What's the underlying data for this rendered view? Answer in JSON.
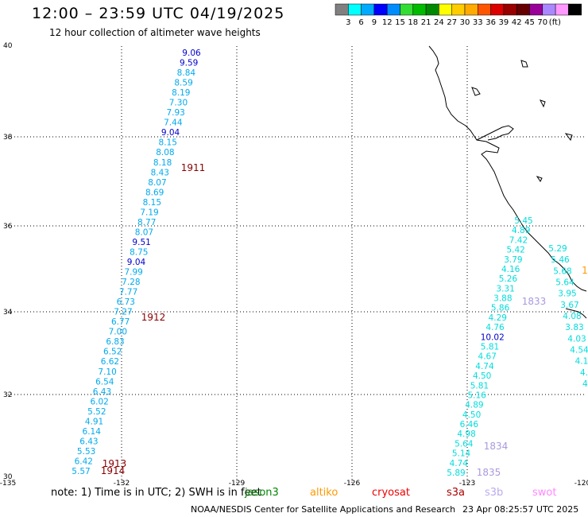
{
  "title": "12:00 – 23:59 UTC 04/19/2025",
  "subtitle": "12 hour collection of altimeter wave heights",
  "legend": {
    "colors": [
      "#808080",
      "#00ffff",
      "#00aaff",
      "#0000ff",
      "#008cff",
      "#33dd33",
      "#00bb00",
      "#008800",
      "#ffff00",
      "#ffcc00",
      "#ffaa00",
      "#ff5500",
      "#dd0000",
      "#990000",
      "#660000",
      "#990099",
      "#aa88ff",
      "#ff99ff",
      "#000000"
    ],
    "labels": [
      "3",
      "6",
      "9",
      "12",
      "15",
      "18",
      "21",
      "24",
      "27",
      "30",
      "33",
      "36",
      "39",
      "42",
      "45",
      "70"
    ],
    "unit": "(ft)"
  },
  "axes": {
    "x_labels": [
      "-135",
      "-132",
      "-129",
      "-126",
      "-123",
      "-120"
    ],
    "y_labels": [
      "40",
      "38",
      "36",
      "34",
      "32",
      "30"
    ]
  },
  "track_west": [
    {
      "v": "9.06",
      "c": "#0000cc"
    },
    {
      "v": "9.59",
      "c": "#0000cc"
    },
    {
      "v": "8.84",
      "c": "#00aaee"
    },
    {
      "v": "8.59",
      "c": "#00aaee"
    },
    {
      "v": "8.19",
      "c": "#00aaee"
    },
    {
      "v": "7.30",
      "c": "#00aaee"
    },
    {
      "v": "7.93",
      "c": "#00aaee"
    },
    {
      "v": "7.44",
      "c": "#00aaee"
    },
    {
      "v": "9.04",
      "c": "#0000cc"
    },
    {
      "v": "8.15",
      "c": "#00aaee"
    },
    {
      "v": "8.08",
      "c": "#00aaee"
    },
    {
      "v": "8.18",
      "c": "#00aaee"
    },
    {
      "v": "8.43",
      "c": "#00aaee"
    },
    {
      "v": "8.07",
      "c": "#00aaee"
    },
    {
      "v": "8.69",
      "c": "#00aaee"
    },
    {
      "v": "8.15",
      "c": "#00aaee"
    },
    {
      "v": "7.19",
      "c": "#00aaee"
    },
    {
      "v": "8.77",
      "c": "#00aaee"
    },
    {
      "v": "8.07",
      "c": "#00aaee"
    },
    {
      "v": "9.51",
      "c": "#0000cc"
    },
    {
      "v": "8.75",
      "c": "#00aaee"
    },
    {
      "v": "9.04",
      "c": "#0000cc"
    },
    {
      "v": "7.99",
      "c": "#00aaee"
    },
    {
      "v": "7.28",
      "c": "#00aaee"
    },
    {
      "v": "7.77",
      "c": "#00aaee"
    },
    {
      "v": "6.73",
      "c": "#00aaee"
    },
    {
      "v": "7.27",
      "c": "#00aaee"
    },
    {
      "v": "6.77",
      "c": "#00aaee"
    },
    {
      "v": "7.00",
      "c": "#00aaee"
    },
    {
      "v": "6.83",
      "c": "#00aaee"
    },
    {
      "v": "6.52",
      "c": "#00aaee"
    },
    {
      "v": "6.62",
      "c": "#00aaee"
    },
    {
      "v": "7.10",
      "c": "#00aaee"
    },
    {
      "v": "6.54",
      "c": "#00aaee"
    },
    {
      "v": "6.43",
      "c": "#00aaee"
    },
    {
      "v": "6.02",
      "c": "#00aaee"
    },
    {
      "v": "5.52",
      "c": "#00aaee"
    },
    {
      "v": "4.91",
      "c": "#00aaee"
    },
    {
      "v": "6.14",
      "c": "#00aaee"
    },
    {
      "v": "6.43",
      "c": "#00aaee"
    },
    {
      "v": "5.53",
      "c": "#00aaee"
    },
    {
      "v": "6.42",
      "c": "#00aaee"
    },
    {
      "v": "5.57",
      "c": "#00aaee"
    }
  ],
  "track_east": [
    {
      "v": "5.45",
      "c": "#00dddd"
    },
    {
      "v": "4.89",
      "c": "#00dddd"
    },
    {
      "v": "7.42",
      "c": "#00dddd"
    },
    {
      "v": "5.42",
      "c": "#00dddd"
    },
    {
      "v": "3.79",
      "c": "#00dddd"
    },
    {
      "v": "4.16",
      "c": "#00dddd"
    },
    {
      "v": "5.26",
      "c": "#00dddd"
    },
    {
      "v": "3.31",
      "c": "#00dddd"
    },
    {
      "v": "3.88",
      "c": "#00dddd"
    },
    {
      "v": "5.86",
      "c": "#00dddd"
    },
    {
      "v": "4.29",
      "c": "#00dddd"
    },
    {
      "v": "4.76",
      "c": "#00dddd"
    },
    {
      "v": "10.02",
      "c": "#0000cc"
    },
    {
      "v": "5.81",
      "c": "#00dddd"
    },
    {
      "v": "4.67",
      "c": "#00dddd"
    },
    {
      "v": "4.74",
      "c": "#00dddd"
    },
    {
      "v": "4.50",
      "c": "#00dddd"
    },
    {
      "v": "5.81",
      "c": "#00dddd"
    },
    {
      "v": "5.16",
      "c": "#00dddd"
    },
    {
      "v": "4.89",
      "c": "#00dddd"
    },
    {
      "v": "4.50",
      "c": "#00dddd"
    },
    {
      "v": "6.46",
      "c": "#00dddd"
    },
    {
      "v": "4.98",
      "c": "#00dddd"
    },
    {
      "v": "5.64",
      "c": "#00dddd"
    },
    {
      "v": "5.14",
      "c": "#00dddd"
    },
    {
      "v": "4.74",
      "c": "#00dddd"
    },
    {
      "v": "5.89",
      "c": "#00dddd"
    }
  ],
  "track_far_east": [
    {
      "v": "5.29",
      "c": "#00dddd"
    },
    {
      "v": "5.46",
      "c": "#00dddd"
    },
    {
      "v": "5.68",
      "c": "#00dddd"
    },
    {
      "v": "5.64",
      "c": "#00dddd"
    },
    {
      "v": "3.95",
      "c": "#00dddd"
    },
    {
      "v": "3.67",
      "c": "#00dddd"
    },
    {
      "v": "4.08",
      "c": "#00dddd"
    },
    {
      "v": "3.83",
      "c": "#00dddd"
    },
    {
      "v": "4.03",
      "c": "#00dddd"
    },
    {
      "v": "4.54",
      "c": "#00dddd"
    },
    {
      "v": "4.1",
      "c": "#00dddd"
    },
    {
      "v": "4.",
      "c": "#00dddd"
    },
    {
      "v": "4.",
      "c": "#00dddd"
    }
  ],
  "time_labels": [
    {
      "t": "1911",
      "c": "#880000"
    },
    {
      "t": "1912",
      "c": "#880000"
    },
    {
      "t": "1913",
      "c": "#880000"
    },
    {
      "t": "1914",
      "c": "#880000"
    },
    {
      "t": "1833",
      "c": "#aa99dd"
    },
    {
      "t": "1834",
      "c": "#aa99dd"
    },
    {
      "t": "1835",
      "c": "#aa99dd"
    },
    {
      "t": "1",
      "c": "#ff9900"
    }
  ],
  "note": {
    "text": "note:  1) Time is in UTC;  2) SWH is in feet",
    "sats": [
      {
        "name": "jason3",
        "color": "#008800"
      },
      {
        "name": "altiko",
        "color": "#ff9900"
      },
      {
        "name": "cryosat",
        "color": "#ee0000"
      },
      {
        "name": "s3a",
        "color": "#aa0000"
      },
      {
        "name": "s3b",
        "color": "#bbaaee"
      },
      {
        "name": "swot",
        "color": "#ff88ff"
      }
    ]
  },
  "credit": "NOAA/NESDIS Center for Satellite Applications and Research",
  "timestamp": "23 Apr 08:25:57 UTC 2025"
}
